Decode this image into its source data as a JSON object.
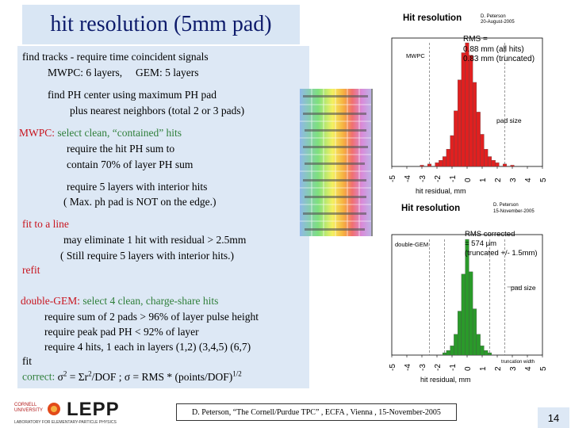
{
  "title": "hit resolution (5mm pad)",
  "lines": {
    "l1": "find tracks - require time coincident signals",
    "l2": "MWPC: 6 layers,     GEM: 5 layers",
    "l3": "find PH center using maximum PH pad",
    "l4": "plus nearest neighbors (total  2 or 3 pads)",
    "mwpc_label": "MWPC:",
    "mwpc_rest": " select clean, “contained” hits",
    "l6": "require the hit PH sum to",
    "l7": "contain 70% of  layer PH sum",
    "l8": "require 5 layers with interior hits",
    "l9": "( Max. ph pad is NOT on the edge.)",
    "fit_line": "fit to a line",
    "l11": "may eliminate 1 hit with residual > 2.5mm",
    "l12": "( Still require 5 layers with interior hits.)",
    "refit": "refit",
    "gem_label": "double-GEM:",
    "gem_rest": " select 4 clean, charge-share hits",
    "l15": "require sum of 2 pads > 96% of layer pulse height",
    "l16": "require peak pad PH < 92% of layer",
    "l17": "require 4 hits, 1 each in layers (1,2) (3,4,5) (6,7)",
    "fit": "fit",
    "correct_label": "correct:",
    "correct_formula": " σ2 = Σr2/DOF ;  σ =  RMS *  (points/DOF)1/2"
  },
  "hist_top": {
    "title": "Hit resolution",
    "author": "D. Peterson",
    "date": "20-August-2005",
    "label": "MWPC",
    "rms_label": "RMS =",
    "rms_all": "0.88 mm (all hits)",
    "rms_trunc": "0.83 mm (truncated)",
    "pad_size": "pad size",
    "xlabel": "hit residual, mm",
    "bar_color": "#e02020"
  },
  "hist_bottom": {
    "title": "Hit resolution",
    "author": "D. Peterson",
    "date": "15-November-2005",
    "label": "double-GEM",
    "rms_label": "RMS corrected",
    "rms_value": "= 574 μm",
    "rms_trunc": "(truncated +/- 1.5mm)",
    "pad_size": "pad size",
    "trunc_width": "truncation width",
    "xlabel": "hit residual, mm",
    "bar_color": "#2a9a2a"
  },
  "chart_data": [
    {
      "type": "bar",
      "title": "Hit resolution",
      "xlabel": "hit residual, mm",
      "ylabel": "",
      "xlim": [
        -5,
        5
      ],
      "x": [
        -3.0,
        -2.5,
        -2.0,
        -1.75,
        -1.5,
        -1.25,
        -1.0,
        -0.75,
        -0.5,
        -0.25,
        0.0,
        0.25,
        0.5,
        0.75,
        1.0,
        1.25,
        1.5,
        1.75,
        2.0,
        2.5,
        3.0
      ],
      "values": [
        1,
        2,
        3,
        5,
        8,
        14,
        25,
        45,
        70,
        92,
        100,
        90,
        68,
        44,
        26,
        14,
        8,
        5,
        3,
        2,
        1
      ]
    },
    {
      "type": "bar",
      "title": "Hit resolution",
      "xlabel": "hit residual, mm",
      "ylabel": "",
      "xlim": [
        -5,
        5
      ],
      "x": [
        -1.5,
        -1.25,
        -1.0,
        -0.75,
        -0.5,
        -0.25,
        0.0,
        0.25,
        0.5,
        0.75,
        1.0,
        1.25,
        1.5
      ],
      "values": [
        2,
        4,
        8,
        18,
        38,
        70,
        100,
        72,
        40,
        18,
        8,
        4,
        2
      ]
    }
  ],
  "ticks": [
    "-5",
    "-4",
    "-3",
    "-2",
    "-1",
    "0",
    "1",
    "2",
    "3",
    "4",
    "5"
  ],
  "footer": "D. Peterson, “The Cornell/Purdue TPC” , ECFA , Vienna , 15-November-2005",
  "page_number": "14",
  "logo": {
    "name": "LEPP",
    "cornell": "CORNELL UNIVERSITY",
    "sub": "LABORATORY FOR ELEMENTARY-PARTICLE PHYSICS"
  }
}
